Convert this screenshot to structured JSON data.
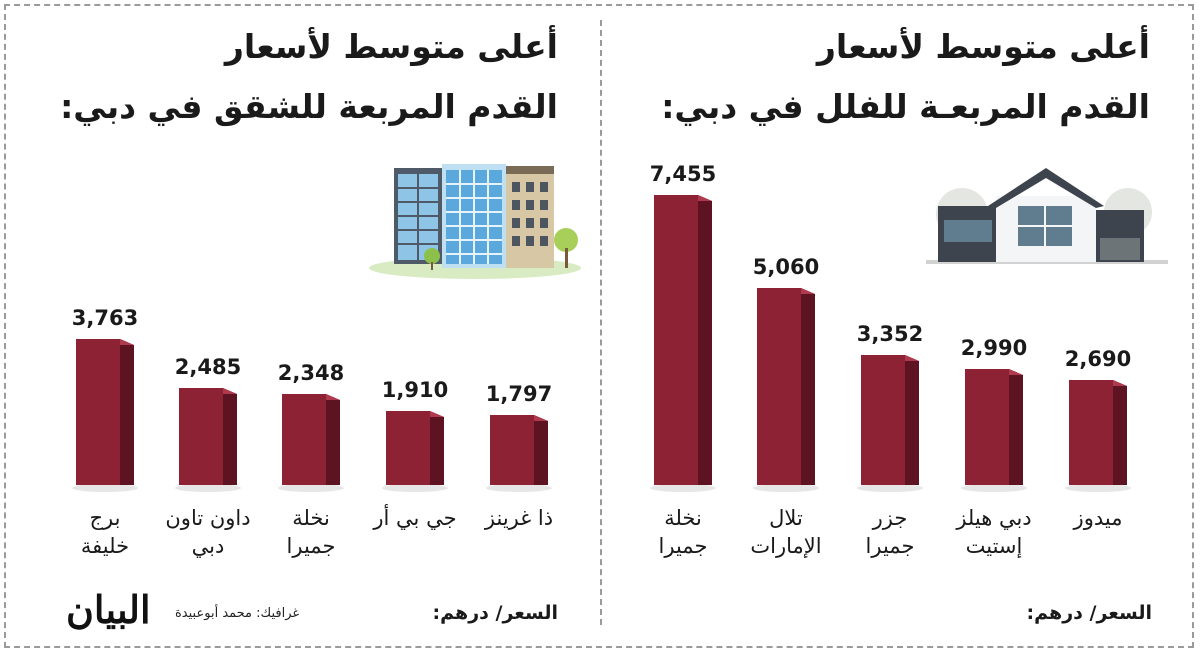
{
  "footer_unit": "السعر/ درهم:",
  "credit": "غرافيك: محمد أبوعبيدة",
  "logo_text": "البيان",
  "chart_data": [
    {
      "type": "bar",
      "title_lines": [
        "أعلى متوسط لأسعار",
        "القدم المربعة للشقق في دبي:"
      ],
      "categories": [
        [
          "برج",
          "خليفة"
        ],
        [
          "داون تاون",
          "دبي"
        ],
        [
          "نخلة",
          "جميرا"
        ],
        [
          "جي بي أر"
        ],
        [
          "ذا غرينز"
        ]
      ],
      "values": [
        3763,
        2485,
        2348,
        1910,
        1797
      ],
      "value_labels": [
        "3,763",
        "2,485",
        "2,348",
        "1,910",
        "1,797"
      ],
      "illustration": "apartment-buildings-icon",
      "ylim": [
        0,
        7455
      ],
      "grid": false,
      "color": "#8e2235"
    },
    {
      "type": "bar",
      "title_lines": [
        "أعلى متوسط لأسعار",
        "القدم المربعـة للفلل في دبي:"
      ],
      "categories": [
        [
          "نخلة",
          "جميرا"
        ],
        [
          "تلال",
          "الإمارات"
        ],
        [
          "جزر",
          "جميرا"
        ],
        [
          "دبي هيلز",
          "إستيت"
        ],
        [
          "ميدوز"
        ]
      ],
      "values": [
        7455,
        5060,
        3352,
        2990,
        2690
      ],
      "value_labels": [
        "7,455",
        "5,060",
        "3,352",
        "2,990",
        "2,690"
      ],
      "illustration": "villa-house-icon",
      "ylim": [
        0,
        7455
      ],
      "grid": false,
      "color": "#8e2235"
    }
  ]
}
